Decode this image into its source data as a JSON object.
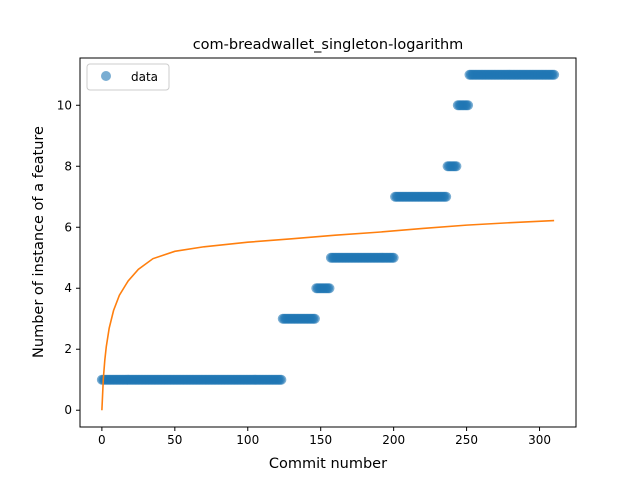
{
  "chart_data": {
    "type": "scatter",
    "title": "com-breadwallet_singleton-logarithm",
    "xlabel": "Commit number",
    "ylabel": "Number of instance of a feature",
    "xlim": [
      -15,
      325
    ],
    "ylim": [
      -0.55,
      11.55
    ],
    "xticks": [
      0,
      50,
      100,
      150,
      200,
      250,
      300
    ],
    "yticks": [
      0,
      2,
      4,
      6,
      8,
      10
    ],
    "xtick_labels": [
      "0",
      "50",
      "100",
      "150",
      "200",
      "250",
      "300"
    ],
    "ytick_labels": [
      "0",
      "2",
      "4",
      "6",
      "8",
      "10"
    ],
    "grid": false,
    "legend": {
      "position": "top-left",
      "entries": [
        "data"
      ]
    },
    "series": [
      {
        "name": "data",
        "kind": "scatter",
        "color": "#1f77b4",
        "segments": [
          {
            "x_start": 0,
            "x_end": 123,
            "y": 1
          },
          {
            "x_start": 124,
            "x_end": 146,
            "y": 3
          },
          {
            "x_start": 147,
            "x_end": 156,
            "y": 4
          },
          {
            "x_start": 157,
            "x_end": 200,
            "y": 5
          },
          {
            "x_start": 201,
            "x_end": 236,
            "y": 7
          },
          {
            "x_start": 237,
            "x_end": 243,
            "y": 8
          },
          {
            "x_start": 244,
            "x_end": 251,
            "y": 10
          },
          {
            "x_start": 252,
            "x_end": 310,
            "y": 11
          }
        ]
      },
      {
        "kind": "line",
        "color": "#ff7f0e",
        "function": "logarithmic",
        "x": [
          0,
          1,
          2,
          3,
          5,
          8,
          12,
          18,
          25,
          35,
          50,
          70,
          100,
          130,
          160,
          190,
          220,
          250,
          280,
          310
        ],
        "y": [
          0.0,
          1.04,
          1.64,
          2.08,
          2.69,
          3.27,
          3.77,
          4.24,
          4.62,
          4.97,
          5.21,
          5.36,
          5.51,
          5.62,
          5.74,
          5.84,
          5.96,
          6.07,
          6.15,
          6.22
        ]
      }
    ]
  }
}
